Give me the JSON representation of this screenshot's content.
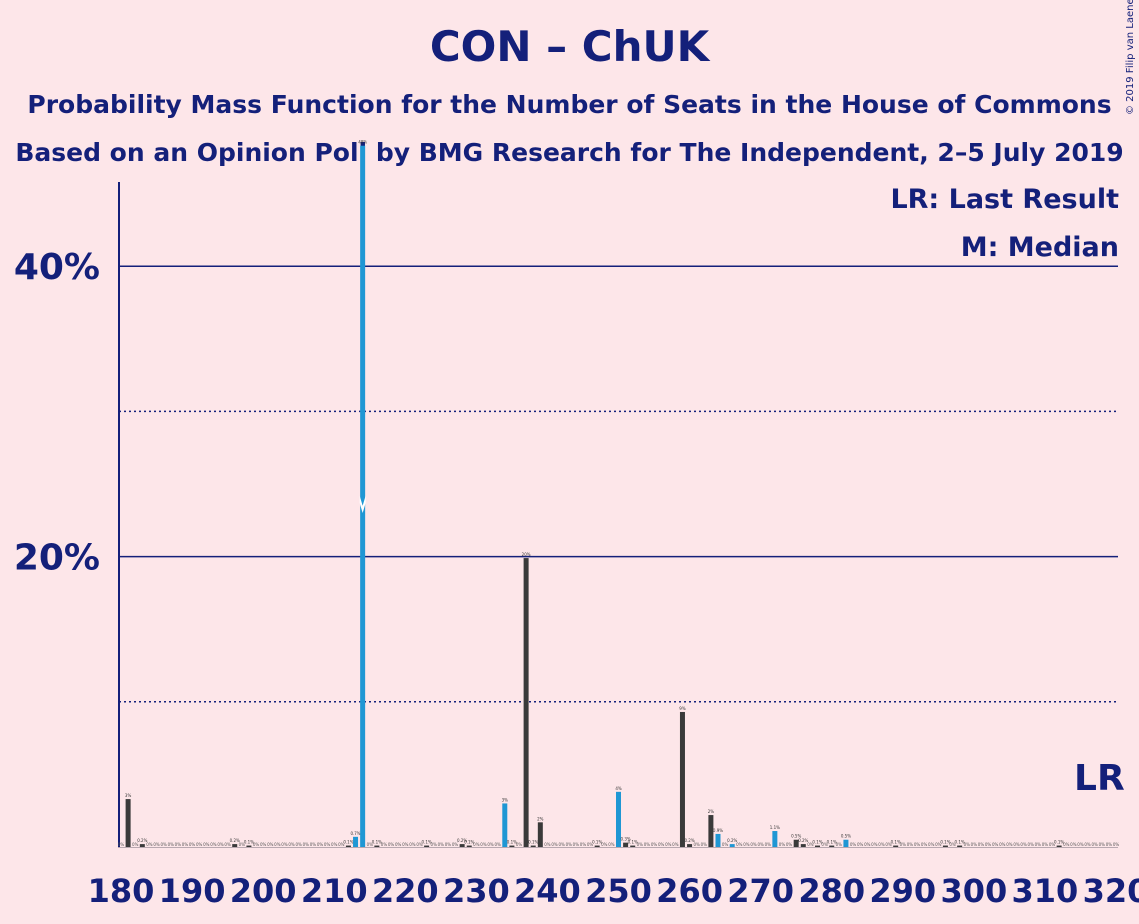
{
  "title": "CON – ChUK",
  "subtitle_1": "Probability Mass Function for the Number of Seats in the House of Commons",
  "subtitle_2": "Based on an Opinion Poll by BMG Research for The Independent, 2–5 July 2019",
  "copyright": "© 2019 Filip van Laenen",
  "legend": {
    "last_result": "LR: Last Result",
    "median": "M: Median"
  },
  "markers": {
    "last_result_label": "LR",
    "last_result_seat": 317,
    "median_label": "M",
    "median_seat": 214
  },
  "colors": {
    "background": "#fde6e9",
    "text": "#14207a",
    "axis": "#14207a",
    "bar_default": "#3a3a3a",
    "bar_highlight": "#1f97d4"
  },
  "chart_data": {
    "type": "bar",
    "x_tick_labels": [
      "180",
      "190",
      "200",
      "210",
      "220",
      "230",
      "240",
      "250",
      "260",
      "270",
      "280",
      "290",
      "300",
      "310",
      "320"
    ],
    "y_tick_labels": [
      "20%",
      "40%"
    ],
    "xlim": [
      180,
      320
    ],
    "ylim": [
      0,
      52
    ],
    "solid_gridlines": [
      20,
      40
    ],
    "dotted_gridlines": [
      10,
      30
    ],
    "bars": [
      {
        "seat": 181,
        "value": 3.3,
        "label": "3%",
        "highlight": false
      },
      {
        "seat": 183,
        "value": 0.2,
        "label": "0.2%",
        "highlight": false
      },
      {
        "seat": 196,
        "value": 0.2,
        "label": "0.2%",
        "highlight": false
      },
      {
        "seat": 198,
        "value": 0.1,
        "label": "0.1%",
        "highlight": false
      },
      {
        "seat": 212,
        "value": 0.1,
        "label": "0.1%",
        "highlight": false
      },
      {
        "seat": 213,
        "value": 0.7,
        "label": "0.7%",
        "highlight": true
      },
      {
        "seat": 214,
        "value": 48.3,
        "label": "48%",
        "highlight": true
      },
      {
        "seat": 216,
        "value": 0.1,
        "label": "0.1%",
        "highlight": false
      },
      {
        "seat": 223,
        "value": 0.1,
        "label": "0.1%",
        "highlight": false
      },
      {
        "seat": 228,
        "value": 0.2,
        "label": "0.2%",
        "highlight": false
      },
      {
        "seat": 229,
        "value": 0.1,
        "label": "0.1%",
        "highlight": false
      },
      {
        "seat": 234,
        "value": 3.0,
        "label": "3%",
        "highlight": true
      },
      {
        "seat": 235,
        "value": 0.1,
        "label": "0.1%",
        "highlight": false
      },
      {
        "seat": 237,
        "value": 19.9,
        "label": "20%",
        "highlight": false
      },
      {
        "seat": 238,
        "value": 0.1,
        "label": "0.1%",
        "highlight": false
      },
      {
        "seat": 239,
        "value": 1.7,
        "label": "2%",
        "highlight": false
      },
      {
        "seat": 247,
        "value": 0.1,
        "label": "0.1%",
        "highlight": false
      },
      {
        "seat": 250,
        "value": 3.8,
        "label": "4%",
        "highlight": true
      },
      {
        "seat": 251,
        "value": 0.3,
        "label": "0.3%",
        "highlight": false
      },
      {
        "seat": 252,
        "value": 0.1,
        "label": "0.1%",
        "highlight": false
      },
      {
        "seat": 259,
        "value": 9.3,
        "label": "9%",
        "highlight": false
      },
      {
        "seat": 260,
        "value": 0.2,
        "label": "0.2%",
        "highlight": false
      },
      {
        "seat": 263,
        "value": 2.2,
        "label": "2%",
        "highlight": false
      },
      {
        "seat": 264,
        "value": 0.9,
        "label": "0.9%",
        "highlight": true
      },
      {
        "seat": 266,
        "value": 0.2,
        "label": "0.2%",
        "highlight": true
      },
      {
        "seat": 272,
        "value": 1.1,
        "label": "1.1%",
        "highlight": true
      },
      {
        "seat": 275,
        "value": 0.5,
        "label": "0.5%",
        "highlight": false
      },
      {
        "seat": 276,
        "value": 0.2,
        "label": "0.2%",
        "highlight": false
      },
      {
        "seat": 278,
        "value": 0.1,
        "label": "0.1%",
        "highlight": false
      },
      {
        "seat": 280,
        "value": 0.1,
        "label": "0.1%",
        "highlight": false
      },
      {
        "seat": 282,
        "value": 0.5,
        "label": "0.5%",
        "highlight": true
      },
      {
        "seat": 289,
        "value": 0.1,
        "label": "0.1%",
        "highlight": false
      },
      {
        "seat": 296,
        "value": 0.1,
        "label": "0.1%",
        "highlight": false
      },
      {
        "seat": 298,
        "value": 0.1,
        "label": "0.1%",
        "highlight": false
      },
      {
        "seat": 312,
        "value": 0.1,
        "label": "0.1%",
        "highlight": false
      }
    ],
    "zero_label": "0%"
  }
}
